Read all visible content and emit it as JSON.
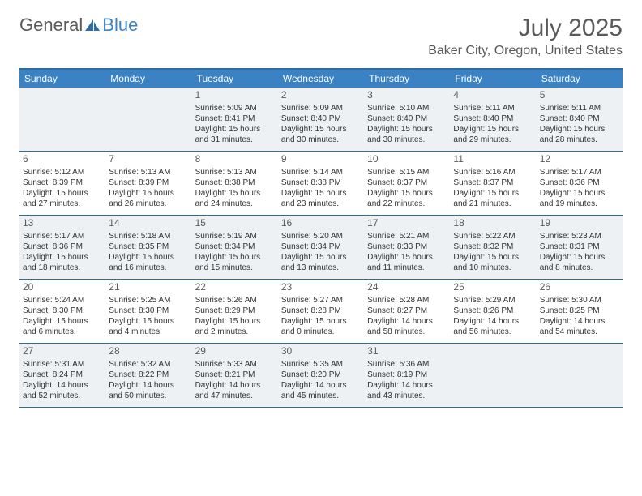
{
  "logo": {
    "part1": "General",
    "part2": "Blue"
  },
  "title": "July 2025",
  "location": "Baker City, Oregon, United States",
  "colors": {
    "header_bg": "#3b82c4",
    "header_text": "#ffffff",
    "border": "#2e6da4",
    "shade_bg": "#eef1f3",
    "text_gray": "#5a5a5a",
    "logo_blue": "#3b82c4"
  },
  "dayNames": [
    "Sunday",
    "Monday",
    "Tuesday",
    "Wednesday",
    "Thursday",
    "Friday",
    "Saturday"
  ],
  "weeks": [
    [
      {
        "empty": true
      },
      {
        "empty": true
      },
      {
        "n": "1",
        "sr": "Sunrise: 5:09 AM",
        "ss": "Sunset: 8:41 PM",
        "dl": "Daylight: 15 hours and 31 minutes."
      },
      {
        "n": "2",
        "sr": "Sunrise: 5:09 AM",
        "ss": "Sunset: 8:40 PM",
        "dl": "Daylight: 15 hours and 30 minutes."
      },
      {
        "n": "3",
        "sr": "Sunrise: 5:10 AM",
        "ss": "Sunset: 8:40 PM",
        "dl": "Daylight: 15 hours and 30 minutes."
      },
      {
        "n": "4",
        "sr": "Sunrise: 5:11 AM",
        "ss": "Sunset: 8:40 PM",
        "dl": "Daylight: 15 hours and 29 minutes."
      },
      {
        "n": "5",
        "sr": "Sunrise: 5:11 AM",
        "ss": "Sunset: 8:40 PM",
        "dl": "Daylight: 15 hours and 28 minutes."
      }
    ],
    [
      {
        "n": "6",
        "sr": "Sunrise: 5:12 AM",
        "ss": "Sunset: 8:39 PM",
        "dl": "Daylight: 15 hours and 27 minutes."
      },
      {
        "n": "7",
        "sr": "Sunrise: 5:13 AM",
        "ss": "Sunset: 8:39 PM",
        "dl": "Daylight: 15 hours and 26 minutes."
      },
      {
        "n": "8",
        "sr": "Sunrise: 5:13 AM",
        "ss": "Sunset: 8:38 PM",
        "dl": "Daylight: 15 hours and 24 minutes."
      },
      {
        "n": "9",
        "sr": "Sunrise: 5:14 AM",
        "ss": "Sunset: 8:38 PM",
        "dl": "Daylight: 15 hours and 23 minutes."
      },
      {
        "n": "10",
        "sr": "Sunrise: 5:15 AM",
        "ss": "Sunset: 8:37 PM",
        "dl": "Daylight: 15 hours and 22 minutes."
      },
      {
        "n": "11",
        "sr": "Sunrise: 5:16 AM",
        "ss": "Sunset: 8:37 PM",
        "dl": "Daylight: 15 hours and 21 minutes."
      },
      {
        "n": "12",
        "sr": "Sunrise: 5:17 AM",
        "ss": "Sunset: 8:36 PM",
        "dl": "Daylight: 15 hours and 19 minutes."
      }
    ],
    [
      {
        "n": "13",
        "sr": "Sunrise: 5:17 AM",
        "ss": "Sunset: 8:36 PM",
        "dl": "Daylight: 15 hours and 18 minutes."
      },
      {
        "n": "14",
        "sr": "Sunrise: 5:18 AM",
        "ss": "Sunset: 8:35 PM",
        "dl": "Daylight: 15 hours and 16 minutes."
      },
      {
        "n": "15",
        "sr": "Sunrise: 5:19 AM",
        "ss": "Sunset: 8:34 PM",
        "dl": "Daylight: 15 hours and 15 minutes."
      },
      {
        "n": "16",
        "sr": "Sunrise: 5:20 AM",
        "ss": "Sunset: 8:34 PM",
        "dl": "Daylight: 15 hours and 13 minutes."
      },
      {
        "n": "17",
        "sr": "Sunrise: 5:21 AM",
        "ss": "Sunset: 8:33 PM",
        "dl": "Daylight: 15 hours and 11 minutes."
      },
      {
        "n": "18",
        "sr": "Sunrise: 5:22 AM",
        "ss": "Sunset: 8:32 PM",
        "dl": "Daylight: 15 hours and 10 minutes."
      },
      {
        "n": "19",
        "sr": "Sunrise: 5:23 AM",
        "ss": "Sunset: 8:31 PM",
        "dl": "Daylight: 15 hours and 8 minutes."
      }
    ],
    [
      {
        "n": "20",
        "sr": "Sunrise: 5:24 AM",
        "ss": "Sunset: 8:30 PM",
        "dl": "Daylight: 15 hours and 6 minutes."
      },
      {
        "n": "21",
        "sr": "Sunrise: 5:25 AM",
        "ss": "Sunset: 8:30 PM",
        "dl": "Daylight: 15 hours and 4 minutes."
      },
      {
        "n": "22",
        "sr": "Sunrise: 5:26 AM",
        "ss": "Sunset: 8:29 PM",
        "dl": "Daylight: 15 hours and 2 minutes."
      },
      {
        "n": "23",
        "sr": "Sunrise: 5:27 AM",
        "ss": "Sunset: 8:28 PM",
        "dl": "Daylight: 15 hours and 0 minutes."
      },
      {
        "n": "24",
        "sr": "Sunrise: 5:28 AM",
        "ss": "Sunset: 8:27 PM",
        "dl": "Daylight: 14 hours and 58 minutes."
      },
      {
        "n": "25",
        "sr": "Sunrise: 5:29 AM",
        "ss": "Sunset: 8:26 PM",
        "dl": "Daylight: 14 hours and 56 minutes."
      },
      {
        "n": "26",
        "sr": "Sunrise: 5:30 AM",
        "ss": "Sunset: 8:25 PM",
        "dl": "Daylight: 14 hours and 54 minutes."
      }
    ],
    [
      {
        "n": "27",
        "sr": "Sunrise: 5:31 AM",
        "ss": "Sunset: 8:24 PM",
        "dl": "Daylight: 14 hours and 52 minutes."
      },
      {
        "n": "28",
        "sr": "Sunrise: 5:32 AM",
        "ss": "Sunset: 8:22 PM",
        "dl": "Daylight: 14 hours and 50 minutes."
      },
      {
        "n": "29",
        "sr": "Sunrise: 5:33 AM",
        "ss": "Sunset: 8:21 PM",
        "dl": "Daylight: 14 hours and 47 minutes."
      },
      {
        "n": "30",
        "sr": "Sunrise: 5:35 AM",
        "ss": "Sunset: 8:20 PM",
        "dl": "Daylight: 14 hours and 45 minutes."
      },
      {
        "n": "31",
        "sr": "Sunrise: 5:36 AM",
        "ss": "Sunset: 8:19 PM",
        "dl": "Daylight: 14 hours and 43 minutes."
      },
      {
        "empty": true
      },
      {
        "empty": true
      }
    ]
  ]
}
